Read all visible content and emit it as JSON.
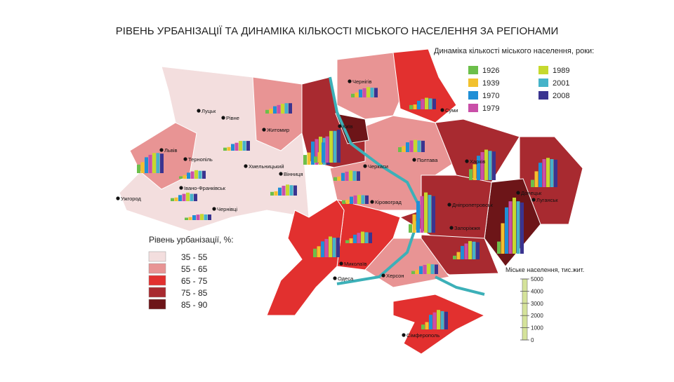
{
  "title": "РІВЕНЬ УРБАНІЗАЦІЇ ТА ДИНАМІКА КІЛЬКОСТІ МІСЬКОГО НАСЕЛЕННЯ ЗА РЕГІОНАМИ",
  "series_legend": {
    "title": "Динаміка кількості міського населення, роки:",
    "series": [
      {
        "name": "1926",
        "color": "#6cbf4a"
      },
      {
        "name": "1939",
        "color": "#f2c12e"
      },
      {
        "name": "1970",
        "color": "#1f8fd6"
      },
      {
        "name": "1979",
        "color": "#c94fa8"
      },
      {
        "name": "1989",
        "color": "#c6d92e"
      },
      {
        "name": "2001",
        "color": "#45b3c9"
      },
      {
        "name": "2008",
        "color": "#3a3490"
      }
    ]
  },
  "urbanization_legend": {
    "title": "Рівень урбанізації, %:",
    "classes": [
      {
        "label": "35 - 55",
        "color": "#f3dede"
      },
      {
        "label": "55 - 65",
        "color": "#e89494"
      },
      {
        "label": "65 - 75",
        "color": "#e2302f"
      },
      {
        "label": "75 - 85",
        "color": "#a82a30"
      },
      {
        "label": "85 - 90",
        "color": "#6d1518"
      }
    ]
  },
  "scale_legend": {
    "title": "Міське населення, тис.жит.",
    "ylim": [
      0,
      5000
    ],
    "yticks": [
      0,
      1000,
      2000,
      3000,
      4000,
      5000
    ]
  },
  "cities": [
    "Луцьк",
    "Рівне",
    "Житомир",
    "Чернігів",
    "Суми",
    "Київ",
    "Харків",
    "Львів",
    "Тернопіль",
    "Хмельницький",
    "Вінниця",
    "Івано-Франківськ",
    "Ужгород",
    "Чернівці",
    "Черкаси",
    "Полтава",
    "Кіровоград",
    "Дніпропетровськ",
    "Донецьк",
    "Луганськ",
    "Запоріжжя",
    "Миколаїв",
    "Херсон",
    "Одеса",
    "Сімферополь"
  ],
  "charts": [
    {
      "values": [
        300,
        400,
        600,
        700,
        800,
        850,
        850
      ]
    },
    {
      "values": [
        250,
        300,
        550,
        650,
        800,
        800,
        800
      ]
    },
    {
      "values": [
        700,
        900,
        1300,
        1500,
        1650,
        1650,
        1600
      ]
    },
    {
      "values": [
        200,
        300,
        500,
        600,
        700,
        650,
        650
      ]
    },
    {
      "values": [
        250,
        300,
        500,
        600,
        700,
        600,
        600
      ]
    },
    {
      "values": [
        200,
        250,
        400,
        450,
        500,
        460,
        460
      ]
    },
    {
      "values": [
        300,
        350,
        650,
        800,
        900,
        850,
        830
      ]
    },
    {
      "values": [
        800,
        1000,
        1900,
        2100,
        2300,
        2200,
        2200
      ]
    },
    {
      "values": [
        500,
        850,
        1650,
        2150,
        2600,
        2600,
        2700
      ]
    },
    {
      "values": [
        300,
        400,
        650,
        750,
        850,
        800,
        780
      ]
    },
    {
      "values": [
        350,
        400,
        700,
        850,
        950,
        900,
        870
      ]
    },
    {
      "values": [
        400,
        500,
        800,
        950,
        1000,
        950,
        930
      ]
    },
    {
      "values": [
        300,
        350,
        650,
        750,
        850,
        800,
        780
      ]
    },
    {
      "values": [
        300,
        350,
        600,
        700,
        750,
        720,
        700
      ]
    },
    {
      "values": [
        900,
        1300,
        2000,
        2300,
        2500,
        2400,
        2350
      ]
    },
    {
      "values": [
        600,
        1300,
        2000,
        2300,
        2400,
        2300,
        2250
      ]
    },
    {
      "values": [
        1000,
        2500,
        3800,
        4300,
        4600,
        4300,
        4200
      ]
    },
    {
      "values": [
        700,
        1500,
        2600,
        3000,
        3300,
        3100,
        3000
      ]
    },
    {
      "values": [
        300,
        600,
        1100,
        1300,
        1500,
        1450,
        1400
      ]
    },
    {
      "values": [
        250,
        400,
        700,
        850,
        950,
        900,
        880
      ]
    },
    {
      "values": [
        700,
        900,
        1300,
        1500,
        1700,
        1600,
        1600
      ]
    },
    {
      "values": [
        250,
        350,
        650,
        750,
        850,
        800,
        780
      ]
    },
    {
      "values": [
        400,
        600,
        1200,
        1400,
        1600,
        1500,
        1450
      ]
    }
  ]
}
